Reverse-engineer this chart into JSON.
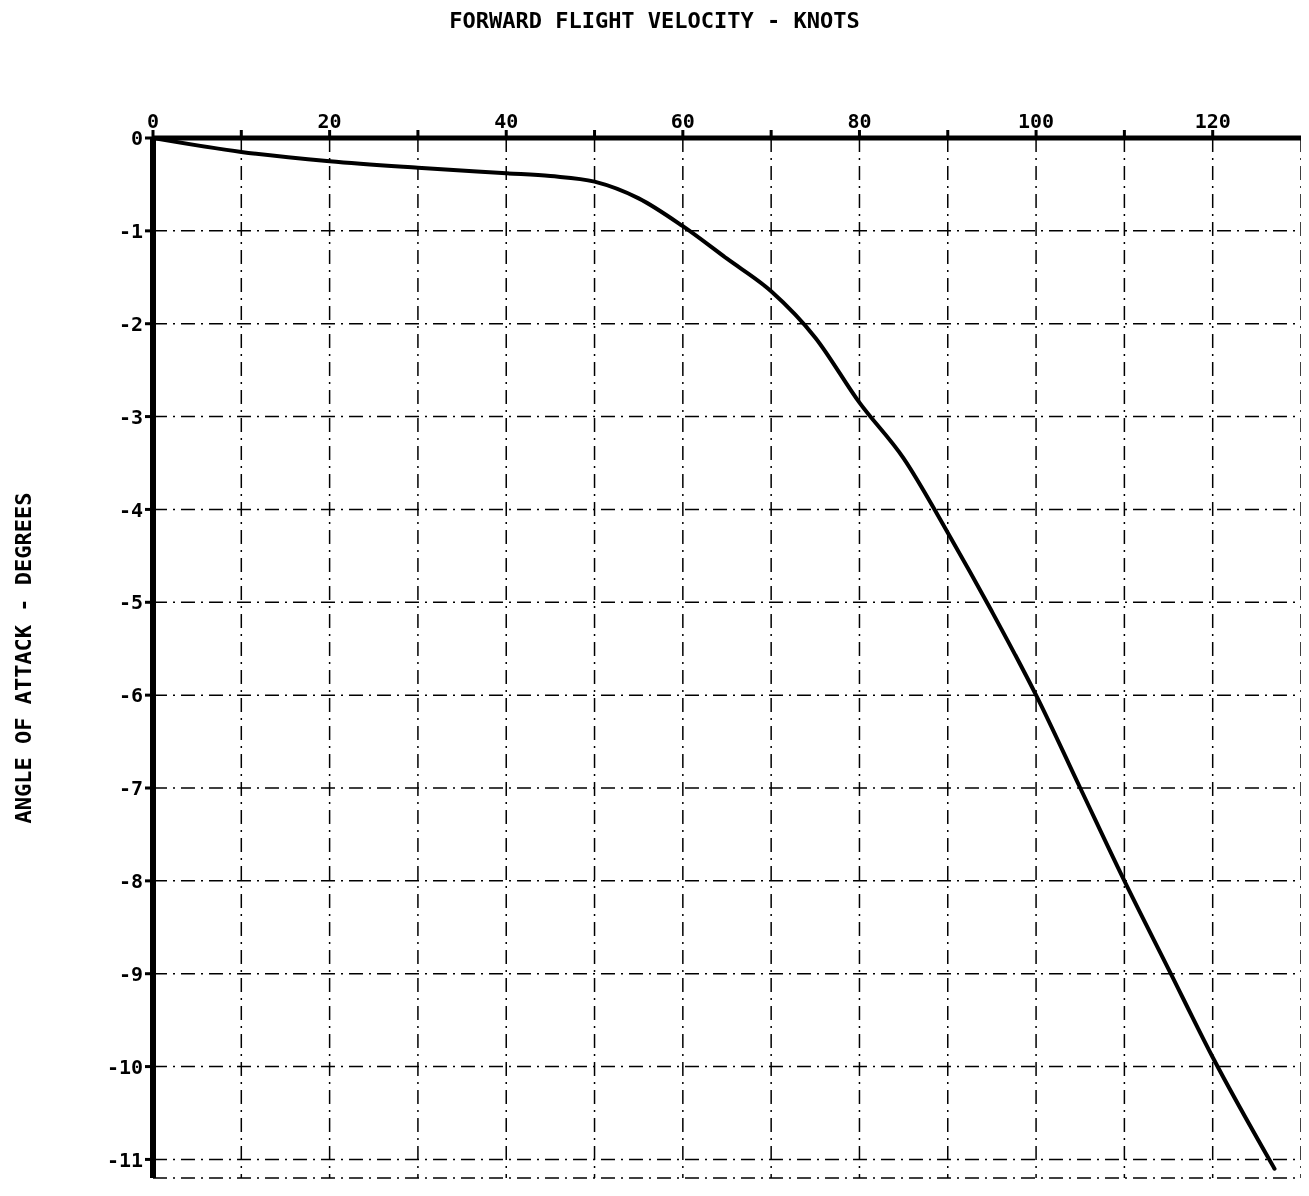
{
  "chart_data": {
    "type": "line",
    "xlabel": "FORWARD FLIGHT VELOCITY - KNOTS",
    "ylabel": "ANGLE OF ATTACK - DEGREES",
    "x": [
      0,
      10,
      20,
      30,
      40,
      45,
      50,
      55,
      60,
      65,
      70,
      75,
      80,
      85,
      90,
      95,
      100,
      105,
      110,
      115,
      120,
      127
    ],
    "series": [
      {
        "color": "#000000",
        "values": [
          0,
          -0.15,
          -0.25,
          -0.32,
          -0.38,
          -0.41,
          -0.47,
          -0.65,
          -0.95,
          -1.3,
          -1.65,
          -2.15,
          -2.85,
          -3.45,
          -4.25,
          -5.1,
          -6.0,
          -7.0,
          -8.0,
          -8.95,
          -9.9,
          -11.1
        ]
      }
    ],
    "xlim": [
      0,
      130
    ],
    "xticks": [
      0,
      {
        "value": 10,
        "label": null
      },
      20,
      {
        "value": 30,
        "label": null
      },
      40,
      {
        "value": 50,
        "label": null
      },
      60,
      {
        "value": 70,
        "label": null
      },
      80,
      {
        "value": 90,
        "label": null
      },
      100,
      {
        "value": 110,
        "label": null
      },
      120
    ],
    "ylim": [
      -11.2,
      0
    ],
    "yticks": [
      0,
      -1,
      -2,
      -3,
      -4,
      -5,
      -6,
      -7,
      -8,
      -9,
      -10,
      -11
    ],
    "grid": true,
    "marker": "none",
    "line_style": "solid"
  }
}
